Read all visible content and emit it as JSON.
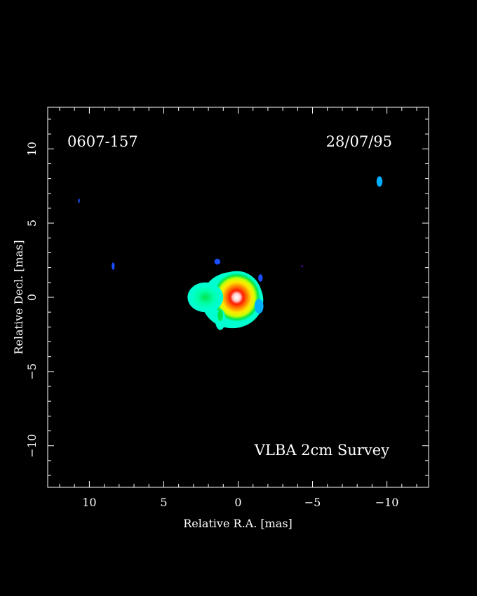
{
  "chart_data": {
    "type": "heatmap",
    "source_name": "0607-157",
    "date": "28/07/95",
    "survey_label": "VLBA 2cm Survey",
    "xlabel": "Relative R.A. [mas]",
    "ylabel": "Relative Decl. [mas]",
    "xlim": [
      12.8,
      -12.8
    ],
    "ylim": [
      -12.8,
      12.8
    ],
    "x_ticks": [
      "10",
      "5",
      "0",
      "−5",
      "−10"
    ],
    "x_tick_values": [
      10,
      5,
      0,
      -5,
      -10
    ],
    "y_ticks": [
      "10",
      "5",
      "0",
      "−5",
      "−10"
    ],
    "y_tick_values": [
      10,
      5,
      0,
      -5,
      -10
    ],
    "colormap": [
      "#1a4dff",
      "#00b0ff",
      "#00ffd0",
      "#00e64d",
      "#ccff00",
      "#ffe600",
      "#ff8000",
      "#ff1a00",
      "#ffffff"
    ],
    "components": [
      {
        "name": "core",
        "x": 0.1,
        "y": 0.0,
        "dx": 1.8,
        "dy": 1.8,
        "peak": "#ffffff"
      },
      {
        "name": "jet-west",
        "x": 2.2,
        "y": 0.0,
        "dx": 1.2,
        "dy": 1.0,
        "peak": "#00e64d"
      },
      {
        "name": "knot-1",
        "x": 1.4,
        "y": 2.4,
        "dx": 0.2,
        "dy": 0.2,
        "peak": "#1a4dff"
      },
      {
        "name": "knot-2",
        "x": -1.5,
        "y": 1.3,
        "dx": 0.15,
        "dy": 0.25,
        "peak": "#1a4dff"
      },
      {
        "name": "knot-3",
        "x": -1.4,
        "y": -0.6,
        "dx": 0.3,
        "dy": 0.5,
        "peak": "#00b0ff"
      },
      {
        "name": "spot-1",
        "x": 8.4,
        "y": 2.1,
        "dx": 0.1,
        "dy": 0.25,
        "peak": "#1a4dff"
      },
      {
        "name": "spot-2",
        "x": 10.7,
        "y": 6.5,
        "dx": 0.05,
        "dy": 0.15,
        "peak": "#1a4dff"
      },
      {
        "name": "spot-3",
        "x": -9.5,
        "y": 7.8,
        "dx": 0.2,
        "dy": 0.35,
        "peak": "#00b0ff"
      },
      {
        "name": "spot-4",
        "x": -4.3,
        "y": 2.1,
        "dx": 0.05,
        "dy": 0.05,
        "peak": "#8000ff"
      }
    ]
  }
}
